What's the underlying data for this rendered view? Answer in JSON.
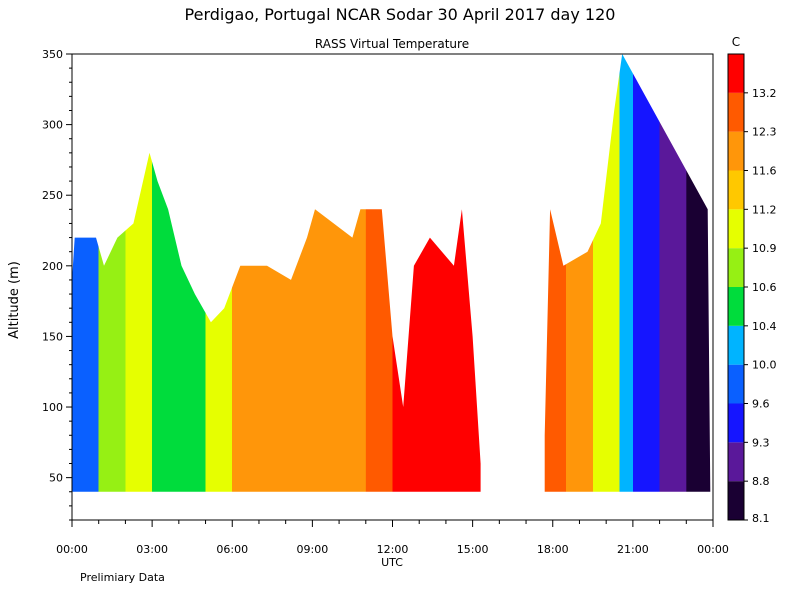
{
  "chart_data": {
    "type": "heatmap",
    "title": "Perdigao, Portugal  NCAR Sodar  30 April 2017  day 120",
    "subtitle": "RASS Virtual Temperature",
    "xlabel": "UTC",
    "ylabel": "Altitude (m)",
    "footnote": "Prelimiary Data",
    "colorbar_unit": "C",
    "xlim": [
      "00:00",
      "24:00"
    ],
    "x_ticks": [
      "00:00",
      "03:00",
      "06:00",
      "09:00",
      "12:00",
      "15:00",
      "18:00",
      "21:00",
      "00:00"
    ],
    "ylim": [
      20,
      350
    ],
    "y_ticks": [
      50,
      100,
      150,
      200,
      250,
      300,
      350
    ],
    "colorbar_levels": [
      "8.1",
      "8.8",
      "9.3",
      "9.6",
      "10.0",
      "10.4",
      "10.6",
      "10.9",
      "11.2",
      "11.6",
      "12.3",
      "13.2"
    ],
    "colorbar_colors": [
      "#1a0033",
      "#5a189a",
      "#1515ff",
      "#0a60ff",
      "#00b4ff",
      "#00dc3c",
      "#96f014",
      "#e6ff00",
      "#ffc800",
      "#ff960a",
      "#ff5a00",
      "#ff0000"
    ],
    "data_extent": {
      "bottom_altitude": 40,
      "top_altitude": [
        [
          0.0,
          190
        ],
        [
          0.1,
          220
        ],
        [
          0.9,
          220
        ],
        [
          1.2,
          200
        ],
        [
          1.7,
          220
        ],
        [
          2.3,
          230
        ],
        [
          2.9,
          280
        ],
        [
          3.2,
          260
        ],
        [
          3.6,
          240
        ],
        [
          4.1,
          200
        ],
        [
          4.6,
          180
        ],
        [
          5.2,
          160
        ],
        [
          5.7,
          170
        ],
        [
          6.3,
          200
        ],
        [
          7.3,
          200
        ],
        [
          8.2,
          190
        ],
        [
          8.8,
          220
        ],
        [
          9.1,
          240
        ],
        [
          10.5,
          220
        ],
        [
          10.8,
          240
        ],
        [
          11.6,
          240
        ],
        [
          12.0,
          150
        ],
        [
          12.4,
          100
        ],
        [
          12.8,
          200
        ],
        [
          13.4,
          220
        ],
        [
          14.3,
          200
        ],
        [
          14.6,
          240
        ],
        [
          15.0,
          150
        ],
        [
          15.3,
          60
        ]
      ],
      "gap_utc": [
        15.3,
        17.7
      ],
      "top_altitude_after_gap": [
        [
          17.7,
          80
        ],
        [
          17.9,
          240
        ],
        [
          18.4,
          200
        ],
        [
          19.3,
          210
        ],
        [
          19.8,
          230
        ],
        [
          20.3,
          310
        ],
        [
          20.6,
          350
        ],
        [
          23.8,
          240
        ],
        [
          23.9,
          40
        ]
      ]
    },
    "temperature_by_time_utc": [
      [
        0.0,
        9.9
      ],
      [
        1.0,
        10.8
      ],
      [
        2.0,
        10.9
      ],
      [
        3.0,
        10.4
      ],
      [
        4.0,
        10.5
      ],
      [
        5.0,
        11.0
      ],
      [
        6.0,
        11.6
      ],
      [
        7.0,
        11.9
      ],
      [
        8.0,
        12.0
      ],
      [
        9.0,
        11.8
      ],
      [
        10.0,
        12.2
      ],
      [
        11.0,
        12.5
      ],
      [
        12.0,
        13.4
      ],
      [
        14.0,
        13.5
      ],
      [
        15.0,
        13.3
      ],
      [
        17.7,
        13.0
      ],
      [
        18.5,
        12.0
      ],
      [
        19.5,
        11.0
      ],
      [
        20.5,
        10.0
      ],
      [
        21.0,
        9.3
      ],
      [
        22.0,
        8.9
      ],
      [
        23.0,
        8.4
      ],
      [
        24.0,
        8.2
      ]
    ]
  }
}
